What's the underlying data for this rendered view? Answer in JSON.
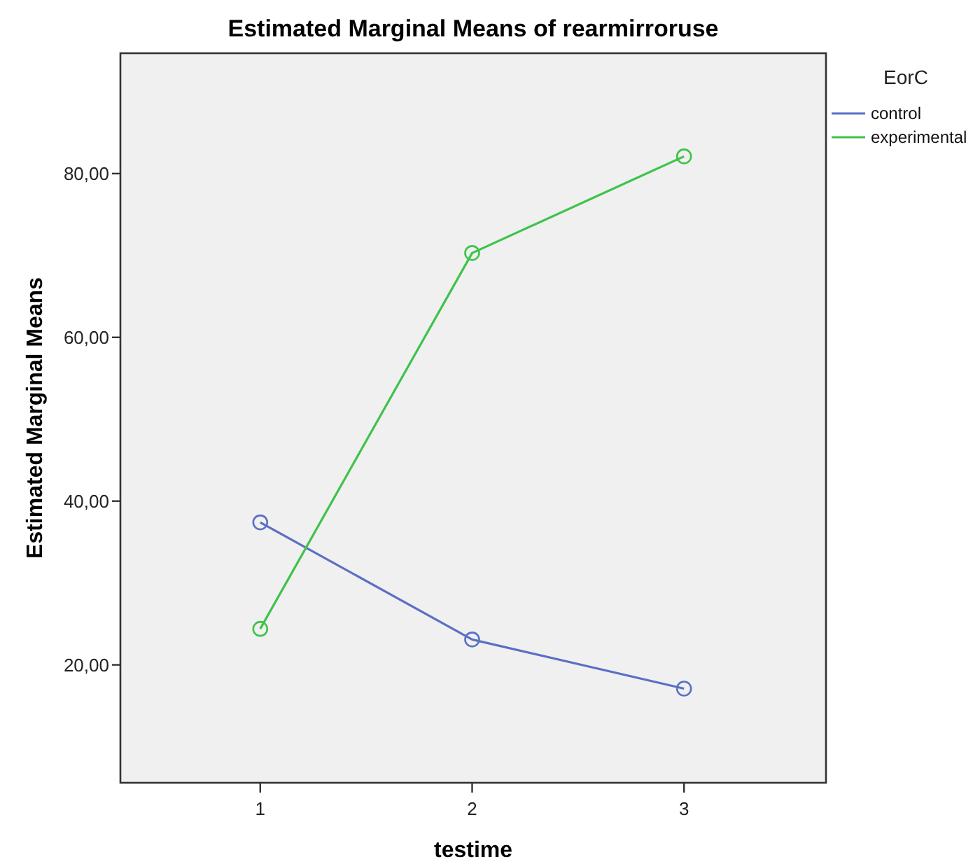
{
  "chart_data": {
    "type": "line",
    "title": "Estimated Marginal Means of rearmirroruse",
    "xlabel": "testime",
    "ylabel": "Estimated Marginal Means",
    "legend_title": "EorC",
    "x": [
      1,
      2,
      3
    ],
    "xlim": [
      0.34,
      3.67
    ],
    "xticks": [
      1,
      2,
      3
    ],
    "ylim": [
      5.6,
      94.7
    ],
    "yticks": [
      {
        "value": 20,
        "label": "20,00"
      },
      {
        "value": 40,
        "label": "40,00"
      },
      {
        "value": 60,
        "label": "60,00"
      },
      {
        "value": 80,
        "label": "80,00"
      }
    ],
    "series": [
      {
        "name": "control",
        "color": "#5b6fc4",
        "values": [
          37.4,
          23.1,
          17.1
        ]
      },
      {
        "name": "experimental",
        "color": "#3ec34a",
        "values": [
          24.4,
          70.3,
          82.1
        ]
      }
    ],
    "marker": "circle",
    "line_style": "solid",
    "grid": false,
    "legend": "top right"
  }
}
